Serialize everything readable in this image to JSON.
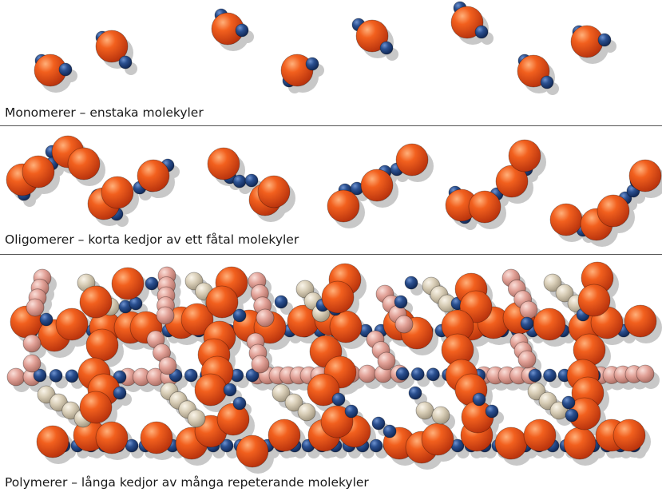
{
  "sections": [
    {
      "id": "monomers",
      "caption": "Monomerer – enstaka molekyler"
    },
    {
      "id": "oligomers",
      "caption": "Oligomerer – korta kedjor av ett fåtal molekyler"
    },
    {
      "id": "polymers",
      "caption": "Polymerer – långa kedjor av många repeterande molekyler"
    }
  ],
  "colors": {
    "large_atom": "#e04a1e",
    "small_atom": "#1f3f7a",
    "pink_atom": "#e2a197",
    "beige_atom": "#d8cdb6",
    "shadow": "#c8c8c8",
    "rule": "#555555"
  }
}
